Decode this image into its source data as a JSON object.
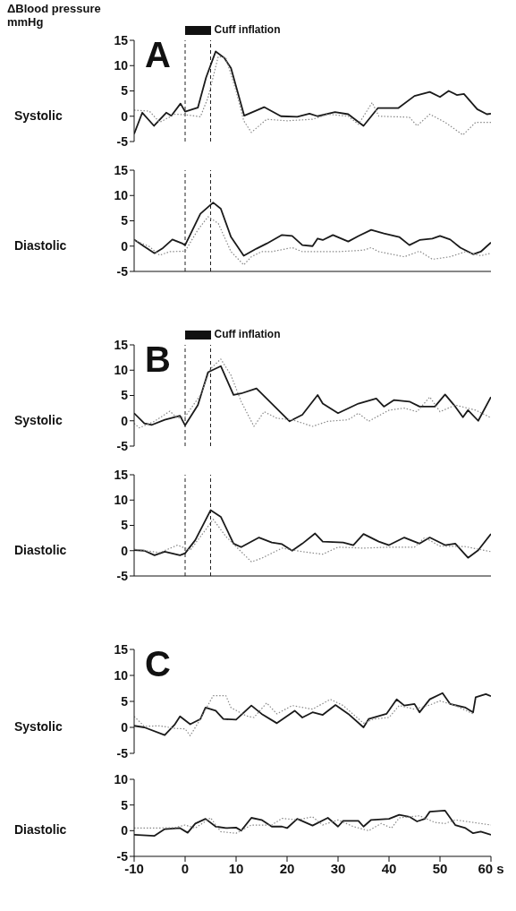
{
  "chart_data": [
    {
      "type": "line",
      "title": "A",
      "ylabel": "Systolic",
      "annotations": [
        "ΔBlood pressure mmHg",
        "Cuff inflation"
      ],
      "xlim": [
        -10,
        60
      ],
      "ylim": [
        -5,
        15
      ],
      "yticks": [
        -5,
        0,
        5,
        10,
        15
      ],
      "tick_labels": "y",
      "marker": "none",
      "ref_lines": [
        {
          "axis": "x",
          "value": 0,
          "line_style": "dashed"
        },
        {
          "axis": "x",
          "value": 5,
          "line_style": "dashed"
        }
      ],
      "series": [
        {
          "color": "#1a1a1a",
          "line_style": "solid",
          "x": [
            -10,
            -8.4,
            -6.1,
            -3.7,
            -2.7,
            -0.9,
            0,
            2.5,
            4.1,
            6,
            7.7,
            9,
            11.6,
            15.5,
            18.8,
            22,
            24.4,
            26,
            29.4,
            32,
            35,
            37.8,
            41.8,
            45,
            48,
            50,
            51.7,
            53.3,
            54.7,
            57.3,
            59.2,
            60
          ],
          "values": [
            -3.5,
            0.7,
            -1.9,
            0.7,
            0.1,
            2.5,
            0.9,
            1.7,
            7.6,
            12.8,
            11.5,
            9.5,
            0.1,
            1.8,
            0,
            -0.1,
            0.5,
            0,
            0.8,
            0.4,
            -1.9,
            1.6,
            1.6,
            4,
            4.8,
            3.8,
            5,
            4.2,
            4.4,
            1.4,
            0.4,
            0.5
          ]
        },
        {
          "color": "#888888",
          "line_style": "dotted",
          "x": [
            -10,
            -7,
            -5,
            -2,
            0,
            3,
            4.5,
            6.5,
            8,
            10,
            11.5,
            13,
            16,
            20,
            25,
            28,
            32,
            34,
            36.7,
            38,
            44,
            45.5,
            48,
            51,
            54.5,
            57,
            60
          ],
          "values": [
            1.2,
            1,
            -1.2,
            0.4,
            0.3,
            -0.1,
            3.7,
            11.8,
            11.5,
            5,
            -0.9,
            -3.2,
            -0.6,
            -0.9,
            -0.6,
            0.4,
            0,
            -1.6,
            2.7,
            0,
            -0.2,
            -1.9,
            0.4,
            -1.2,
            -3.7,
            -1.2,
            -1.2
          ]
        }
      ]
    },
    {
      "type": "line",
      "ylabel": "Diastolic",
      "xlim": [
        -10,
        60
      ],
      "xticks": [
        -10,
        0,
        10,
        20,
        30,
        40,
        50,
        60
      ],
      "ylim": [
        -5,
        15
      ],
      "yticks": [
        -5,
        0,
        5,
        10,
        15
      ],
      "tick_labels": "y",
      "marker": "none",
      "ref_lines": [
        {
          "axis": "x",
          "value": 0,
          "line_style": "dashed"
        },
        {
          "axis": "x",
          "value": 5,
          "line_style": "dashed"
        }
      ],
      "series": [
        {
          "color": "#1a1a1a",
          "line_style": "solid",
          "x": [
            -10,
            -8,
            -6,
            -4.5,
            -2.5,
            -0.5,
            0,
            3,
            5.5,
            7,
            9,
            11.5,
            14,
            16,
            19,
            21,
            23,
            25,
            26,
            27,
            29,
            32,
            34,
            36.5,
            39,
            42,
            44,
            46,
            48.5,
            50,
            52,
            54,
            56.5,
            58,
            60
          ],
          "values": [
            1.3,
            -0.1,
            -1.4,
            -0.5,
            1.3,
            0.5,
            0.2,
            6.4,
            8.6,
            7.4,
            1.8,
            -1.9,
            -0.5,
            0.5,
            2.2,
            2,
            0.2,
            0,
            1.5,
            1.2,
            2.2,
            0.9,
            2,
            3.2,
            2.5,
            1.8,
            0.2,
            1.2,
            1.5,
            2,
            1.3,
            -0.3,
            -1.6,
            -1.1,
            0.7
          ]
        },
        {
          "color": "#888888",
          "line_style": "dotted",
          "x": [
            -10,
            -7,
            -5,
            -3,
            0,
            2.5,
            4.5,
            6.5,
            9,
            11.5,
            13,
            15,
            17,
            21,
            23,
            30,
            35,
            36.5,
            38,
            43,
            46,
            48.5,
            52,
            55,
            58,
            60
          ],
          "values": [
            1.2,
            -0.1,
            -1.8,
            -1.1,
            -1,
            3.2,
            5.8,
            4.5,
            -1.1,
            -3.7,
            -2.1,
            -1.1,
            -1.1,
            -0.3,
            -1.1,
            -1.1,
            -0.8,
            -0.3,
            -1.1,
            -2.1,
            -1,
            -2.6,
            -2.1,
            -1.1,
            -1.9,
            -1.4
          ]
        }
      ]
    },
    {
      "type": "line",
      "title": "B",
      "ylabel": "Systolic",
      "annotations": [
        "Cuff inflation"
      ],
      "xlim": [
        -10,
        60
      ],
      "ylim": [
        -5,
        15
      ],
      "yticks": [
        -5,
        0,
        5,
        10,
        15
      ],
      "tick_labels": "y",
      "marker": "none",
      "ref_lines": [
        {
          "axis": "x",
          "value": 0,
          "line_style": "dashed"
        },
        {
          "axis": "x",
          "value": 5,
          "line_style": "dashed"
        }
      ],
      "series": [
        {
          "color": "#1a1a1a",
          "line_style": "solid",
          "x": [
            -10,
            -8,
            -6.5,
            -4,
            -1,
            0,
            2.5,
            4.5,
            7,
            9.5,
            11,
            14,
            20.5,
            23,
            26,
            27,
            30,
            34,
            37.5,
            39,
            41,
            44,
            46,
            49,
            51,
            53,
            54.5,
            55.5,
            57.5,
            60
          ],
          "values": [
            1.5,
            -0.5,
            -0.8,
            0.2,
            1,
            -0.9,
            3.1,
            9.6,
            10.8,
            5.1,
            5.4,
            6.4,
            -0.1,
            1.2,
            5.1,
            3.4,
            1.5,
            3.4,
            4.4,
            2.8,
            4.1,
            3.8,
            2.8,
            2.8,
            5.2,
            2.8,
            0.7,
            2.1,
            0,
            4.7
          ]
        },
        {
          "color": "#888888",
          "line_style": "dotted",
          "x": [
            -10,
            -9,
            -6,
            -3,
            -1.5,
            0,
            3,
            5,
            7,
            9,
            11,
            13.5,
            15.5,
            18,
            21,
            25,
            28,
            32,
            34,
            36,
            40,
            43,
            45.5,
            48,
            50,
            53,
            57,
            60
          ],
          "values": [
            -0.5,
            -1.4,
            -0.1,
            1.9,
            0.5,
            0.8,
            5.1,
            10.3,
            12.2,
            9,
            3.8,
            -1.1,
            1.8,
            0.5,
            0.2,
            -1.1,
            -0.1,
            0.2,
            1.5,
            -0.1,
            2.1,
            2.5,
            1.8,
            4.7,
            1.8,
            3.1,
            2.1,
            0.6
          ]
        }
      ]
    },
    {
      "type": "line",
      "ylabel": "Diastolic",
      "xlim": [
        -10,
        60
      ],
      "xticks": [
        -10,
        0,
        10,
        20,
        30,
        40,
        50,
        60
      ],
      "ylim": [
        -5,
        15
      ],
      "yticks": [
        -5,
        0,
        5,
        10,
        15
      ],
      "tick_labels": "y",
      "marker": "none",
      "ref_lines": [
        {
          "axis": "x",
          "value": 0,
          "line_style": "dashed"
        },
        {
          "axis": "x",
          "value": 5,
          "line_style": "dashed"
        }
      ],
      "series": [
        {
          "color": "#1a1a1a",
          "line_style": "solid",
          "x": [
            -10,
            -8,
            -6,
            -4,
            -1,
            0,
            2,
            5,
            7,
            9.5,
            11,
            14.5,
            17,
            19,
            21,
            23,
            25.5,
            27,
            31,
            33,
            35,
            38,
            40,
            43,
            46,
            48,
            51,
            53,
            55.5,
            57.5,
            60
          ],
          "values": [
            0.1,
            0,
            -0.9,
            -0.2,
            -0.9,
            -0.5,
            2.1,
            8,
            6.7,
            1.4,
            0.7,
            2.6,
            1.6,
            1.3,
            0,
            1.4,
            3.4,
            1.8,
            1.6,
            1.1,
            3.3,
            1.8,
            1.1,
            2.6,
            1.4,
            2.6,
            1.1,
            1.4,
            -1.4,
            0.1,
            3.3
          ]
        },
        {
          "color": "#888888",
          "line_style": "dotted",
          "x": [
            -10,
            -5,
            -1.5,
            1,
            4,
            5.5,
            8,
            10,
            13,
            15,
            19,
            23,
            27,
            30,
            35,
            40,
            45,
            47,
            50,
            55,
            60
          ],
          "values": [
            0.3,
            -0.4,
            1.1,
            0.1,
            4.1,
            6.2,
            2.8,
            0.8,
            -2.2,
            -1.5,
            0.5,
            -0.2,
            -0.7,
            0.7,
            0.5,
            0.7,
            0.7,
            2.6,
            0.9,
            0.8,
            -0.2
          ]
        }
      ]
    },
    {
      "type": "line",
      "title": "C",
      "ylabel": "Systolic",
      "xlim": [
        -10,
        60
      ],
      "ylim": [
        -5,
        15
      ],
      "yticks": [
        -5,
        0,
        5,
        10,
        15
      ],
      "tick_labels": "y",
      "marker": "none",
      "series": [
        {
          "color": "#1a1a1a",
          "line_style": "solid",
          "x": [
            -10,
            -8,
            -4,
            -2,
            -1,
            1,
            3,
            4,
            6,
            7.5,
            10,
            13,
            15,
            18,
            21.5,
            23,
            25,
            27,
            29.5,
            32,
            35,
            36,
            39.5,
            41.5,
            43,
            45,
            46,
            48,
            50.5,
            52,
            55,
            56.5,
            57,
            59,
            60
          ],
          "values": [
            0.3,
            0,
            -1.5,
            0.6,
            2.1,
            0.6,
            1.6,
            3.8,
            3.2,
            1.6,
            1.5,
            4.2,
            2.6,
            0.8,
            3.2,
            1.9,
            2.9,
            2.4,
            4.3,
            2.6,
            0,
            1.6,
            2.6,
            5.4,
            4.2,
            4.5,
            2.9,
            5.4,
            6.6,
            4.5,
            3.8,
            2.9,
            5.8,
            6.4,
            6
          ]
        },
        {
          "color": "#888888",
          "line_style": "dotted",
          "x": [
            -10,
            -8,
            -5,
            -2,
            0,
            1,
            3,
            5.5,
            8,
            9,
            12,
            13.5,
            16,
            18,
            21,
            25,
            28.5,
            31,
            35,
            37,
            40,
            42,
            45,
            48,
            50,
            53,
            56.5
          ],
          "values": [
            2.1,
            0.2,
            0.3,
            -0.2,
            -0.3,
            -1.6,
            1.6,
            6.1,
            6.1,
            3.8,
            2.2,
            1.9,
            4.7,
            2.6,
            4.2,
            3.5,
            5.4,
            4.2,
            0.8,
            1.6,
            1.9,
            4.2,
            3.5,
            4.3,
            5.1,
            4.2,
            2.6
          ]
        }
      ]
    },
    {
      "type": "line",
      "ylabel": "Diastolic",
      "xlim": [
        -10,
        60
      ],
      "xticks": [
        -10,
        0,
        10,
        20,
        30,
        40,
        50,
        {
          "value": 60,
          "label": "60 s"
        }
      ],
      "ylim": [
        -5,
        10
      ],
      "yticks": [
        -5,
        0,
        5,
        10
      ],
      "marker": "none",
      "series": [
        {
          "color": "#1a1a1a",
          "line_style": "solid",
          "x": [
            -10,
            -6,
            -4,
            -1,
            0.5,
            2,
            4,
            6,
            8,
            10,
            11,
            13,
            15,
            17,
            19,
            20,
            22,
            25,
            28,
            30,
            31,
            34,
            35,
            36.5,
            40,
            42,
            44,
            45.5,
            47,
            48,
            51,
            53,
            55,
            56.5,
            58,
            60
          ],
          "values": [
            -0.8,
            -1,
            0.3,
            0.5,
            -0.4,
            1.4,
            2.3,
            0.8,
            0.5,
            0.6,
            0,
            2.5,
            2.1,
            0.8,
            0.8,
            0.5,
            2.3,
            1,
            2.5,
            0.8,
            1.9,
            1.9,
            0.8,
            2.1,
            2.3,
            3.1,
            2.7,
            1.8,
            2.3,
            3.7,
            3.9,
            1.1,
            0.5,
            -0.5,
            -0.2,
            -0.8
          ]
        },
        {
          "color": "#888888",
          "line_style": "dotted",
          "x": [
            -10,
            -6,
            -2,
            0,
            2,
            5,
            7,
            10,
            13,
            17,
            19,
            22,
            25,
            27,
            30,
            33,
            36,
            38.5,
            40.5,
            42,
            46,
            49,
            51,
            53,
            60
          ],
          "values": [
            0.5,
            0.5,
            0.6,
            1.1,
            0.5,
            2.5,
            -0.2,
            -0.5,
            1.1,
            1.1,
            2.4,
            2.1,
            2.7,
            1.1,
            2.1,
            0.8,
            0,
            1.4,
            0.5,
            2.5,
            2.9,
            1.6,
            1.4,
            2.1,
            1.1
          ]
        }
      ]
    }
  ]
}
